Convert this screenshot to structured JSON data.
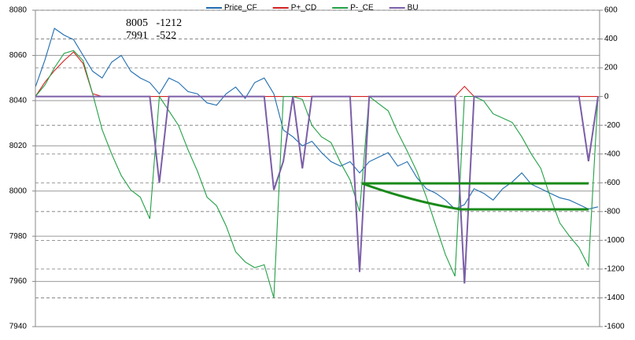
{
  "chart_data": {
    "type": "line",
    "ylim": [
      7940,
      8080
    ],
    "yticks": [
      7940,
      7960,
      7980,
      8000,
      8020,
      8040,
      8060,
      8080
    ],
    "y2lim": [
      -1600,
      600
    ],
    "y2ticks": [
      -1600,
      -1400,
      -1200,
      -1000,
      -800,
      -600,
      -400,
      -200,
      0,
      200,
      400,
      600
    ],
    "grid": true,
    "legend": "top",
    "annotations": [
      "8005   -1212",
      "7991   -522"
    ],
    "series": [
      {
        "name": "Price_CF",
        "color": "#1f6cb0",
        "values": [
          8046,
          8058,
          8072,
          8069,
          8067,
          8060,
          8053,
          8050,
          8057,
          8060,
          8053,
          8050,
          8048,
          8043,
          8050,
          8048,
          8044,
          8043,
          8039,
          8038,
          8043,
          8046,
          8041,
          8048,
          8050,
          8043,
          8027,
          8024,
          8020,
          8022,
          8017,
          8013,
          8011,
          8013,
          8008,
          8013,
          8015,
          8017,
          8011,
          8013,
          8006,
          8001,
          7999,
          7996,
          7992,
          7994,
          8001,
          7999,
          7996,
          8001,
          8004,
          8008,
          8003,
          8001,
          7999,
          7997,
          7996,
          7994,
          7992,
          7993
        ]
      },
      {
        "name": "P+_CD",
        "color": "#d42020",
        "axis": "y2",
        "values": [
          0,
          100,
          180,
          250,
          310,
          230,
          20,
          0,
          0,
          0,
          0,
          0,
          0,
          0,
          0,
          0,
          0,
          0,
          0,
          0,
          0,
          0,
          0,
          0,
          0,
          0,
          0,
          0,
          0,
          0,
          0,
          0,
          0,
          0,
          0,
          0,
          0,
          0,
          0,
          0,
          0,
          0,
          0,
          0,
          0,
          70,
          0,
          0,
          0,
          0,
          0,
          0,
          0,
          0,
          0,
          0,
          0,
          0,
          0,
          0
        ]
      },
      {
        "name": "P-_CE",
        "color": "#22a045",
        "axis": "y2",
        "values": [
          0,
          80,
          200,
          300,
          320,
          250,
          20,
          -230,
          -400,
          -550,
          -650,
          -700,
          -850,
          0,
          -100,
          -200,
          -370,
          -520,
          -700,
          -760,
          -900,
          -1080,
          -1150,
          -1190,
          -1170,
          -1400,
          0,
          0,
          -20,
          -200,
          -280,
          -320,
          -460,
          -580,
          -800,
          0,
          -50,
          -100,
          -250,
          -380,
          -520,
          -700,
          -900,
          -1100,
          -1250,
          0,
          0,
          -30,
          -120,
          -150,
          -180,
          -280,
          -400,
          -500,
          -700,
          -880,
          -970,
          -1050,
          -1180,
          0
        ]
      },
      {
        "name": "BU",
        "color": "#7b5ea7",
        "axis": "y2",
        "values": [
          0,
          0,
          0,
          0,
          0,
          0,
          0,
          0,
          0,
          0,
          0,
          0,
          0,
          -600,
          0,
          0,
          0,
          0,
          0,
          0,
          0,
          0,
          0,
          0,
          0,
          -650,
          -450,
          0,
          -500,
          0,
          0,
          0,
          0,
          0,
          -1220,
          0,
          0,
          0,
          0,
          0,
          0,
          0,
          0,
          0,
          0,
          -1300,
          0,
          0,
          0,
          0,
          0,
          0,
          0,
          0,
          0,
          0,
          0,
          0,
          -450,
          0
        ]
      }
    ]
  }
}
